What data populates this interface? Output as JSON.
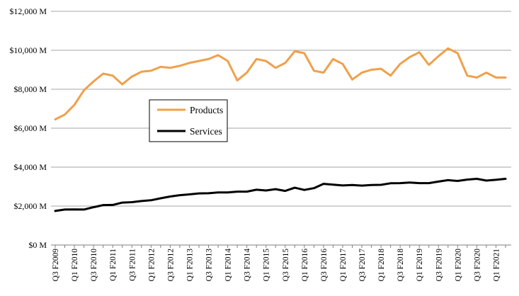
{
  "chart_data": {
    "type": "line",
    "title": "",
    "xlabel": "",
    "ylabel": "",
    "ylim": [
      0,
      12000
    ],
    "y_ticks": [
      {
        "value": 0,
        "label": "$0 M"
      },
      {
        "value": 2000,
        "label": "$2,000 M"
      },
      {
        "value": 4000,
        "label": "$4,000 M"
      },
      {
        "value": 6000,
        "label": "$6,000 M"
      },
      {
        "value": 8000,
        "label": "$8,000 M"
      },
      {
        "value": 10000,
        "label": "$10,000 M"
      },
      {
        "value": 12000,
        "label": "$12,000 M"
      }
    ],
    "grid": "horizontal",
    "legend_position": "center-left",
    "categories": [
      "Q3 F2009",
      "Q4 F2009",
      "Q1 F2010",
      "Q2 F2010",
      "Q3 F2010",
      "Q4 F2010",
      "Q1 F2011",
      "Q2 F2011",
      "Q3 F2011",
      "Q4 F2011",
      "Q1 F2012",
      "Q2 F2012",
      "Q3 F2012",
      "Q4 F2012",
      "Q1 F2013",
      "Q2 F2013",
      "Q3 F2013",
      "Q4 F2013",
      "Q1 F2014",
      "Q2 F2014",
      "Q3 F2014",
      "Q4 F2014",
      "Q1 F2015",
      "Q2 F2015",
      "Q3 F2015",
      "Q4 F2015",
      "Q1 F2016",
      "Q2 F2016",
      "Q3 F2016",
      "Q4 F2016",
      "Q1 F2017",
      "Q2 F2017",
      "Q3 F2017",
      "Q4 F2017",
      "Q1 F2018",
      "Q2 F2018",
      "Q3 F2018",
      "Q4 F2018",
      "Q1 F2019",
      "Q2 F2019",
      "Q3 F2019",
      "Q4 F2019",
      "Q1 F2020",
      "Q2 F2020",
      "Q3 F2020",
      "Q4 F2020",
      "Q1 F2021",
      "Q2 F2021"
    ],
    "visible_category_labels": [
      "Q3 F2009",
      "Q1 F2010",
      "Q3 F2010",
      "Q1 F2011",
      "Q3 F2011",
      "Q1 F2012",
      "Q3 F2012",
      "Q1 F2013",
      "Q3 F2013",
      "Q1 F2014",
      "Q3 F2014",
      "Q1 F2015",
      "Q3 F2015",
      "Q1 F2016",
      "Q3 F2016",
      "Q1 F2017",
      "Q3 F2017",
      "Q1 F2018",
      "Q3 F2018",
      "Q1 F2019",
      "Q3 F2019",
      "Q1 F2020",
      "Q3 F2020",
      "Q1 F2021"
    ],
    "series": [
      {
        "name": "Products",
        "color": "#F0A04B",
        "values": [
          6450,
          6700,
          7200,
          7950,
          8400,
          8800,
          8700,
          8250,
          8650,
          8900,
          8950,
          9150,
          9100,
          9200,
          9350,
          9450,
          9550,
          9750,
          9450,
          8450,
          8850,
          9550,
          9450,
          9100,
          9350,
          9950,
          9850,
          8950,
          8850,
          9550,
          9300,
          8500,
          8850,
          9000,
          9050,
          8700,
          9300,
          9650,
          9900,
          9250,
          9700,
          10100,
          9850,
          8700,
          8600,
          8850,
          8600,
          8600
        ]
      },
      {
        "name": "Services",
        "color": "#000000",
        "values": [
          1750,
          1820,
          1830,
          1820,
          1940,
          2050,
          2060,
          2180,
          2200,
          2260,
          2300,
          2400,
          2490,
          2560,
          2600,
          2650,
          2660,
          2700,
          2700,
          2740,
          2740,
          2840,
          2800,
          2870,
          2780,
          2940,
          2830,
          2920,
          3140,
          3100,
          3060,
          3080,
          3050,
          3080,
          3090,
          3170,
          3180,
          3210,
          3180,
          3180,
          3260,
          3330,
          3290,
          3360,
          3400,
          3310,
          3350,
          3400
        ]
      }
    ]
  }
}
